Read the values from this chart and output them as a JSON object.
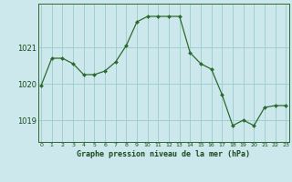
{
  "x": [
    0,
    1,
    2,
    3,
    4,
    5,
    6,
    7,
    8,
    9,
    10,
    11,
    12,
    13,
    14,
    15,
    16,
    17,
    18,
    19,
    20,
    21,
    22,
    23
  ],
  "y": [
    1019.95,
    1020.7,
    1020.7,
    1020.55,
    1020.25,
    1020.25,
    1020.35,
    1020.6,
    1021.05,
    1021.7,
    1021.85,
    1021.85,
    1021.85,
    1021.85,
    1020.85,
    1020.55,
    1020.4,
    1019.7,
    1018.85,
    1019.0,
    1018.85,
    1019.35,
    1019.4,
    1019.4
  ],
  "line_color": "#2d6a2d",
  "marker_color": "#2d6a2d",
  "bg_color": "#cce8ec",
  "grid_color": "#99cccc",
  "border_color": "#2d6a2d",
  "xlabel": "Graphe pression niveau de la mer (hPa)",
  "xlabel_color": "#1a4a1a",
  "tick_color": "#1a4a1a",
  "yticks": [
    1019,
    1020,
    1021
  ],
  "ylim": [
    1018.4,
    1022.2
  ],
  "xlim": [
    -0.3,
    23.3
  ]
}
